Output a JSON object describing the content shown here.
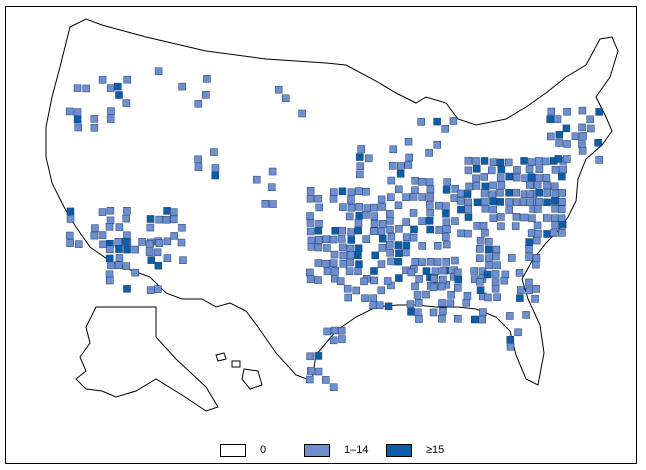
{
  "legend": {
    "items": [
      {
        "label": "0",
        "color": "#ffffff"
      },
      {
        "label": "1–14",
        "color": "#6d8fd0"
      },
      {
        "label": "≥15",
        "color": "#0a5ea8"
      }
    ]
  },
  "colors": {
    "outline": "#000000",
    "land": "#ffffff",
    "low": "#6d8fd0",
    "high": "#0a5ea8"
  }
}
